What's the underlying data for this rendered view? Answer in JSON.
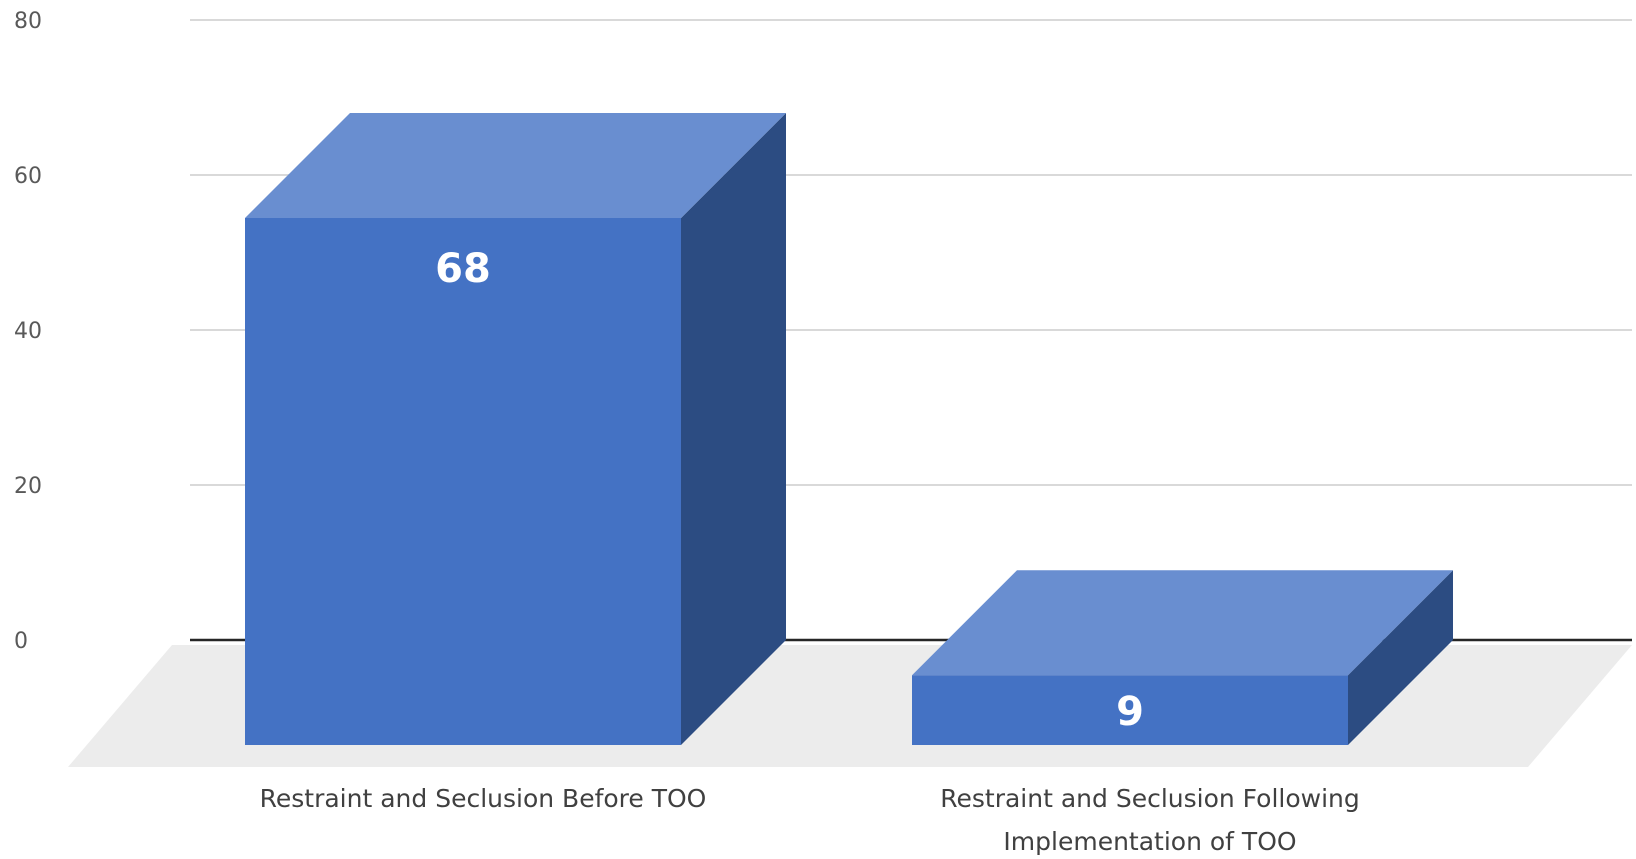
{
  "chart_data": {
    "type": "bar",
    "style": "3d-column",
    "title": "",
    "xlabel": "",
    "ylabel": "",
    "ylim": [
      0,
      80
    ],
    "yticks": [
      0,
      20,
      40,
      60,
      80
    ],
    "grid": true,
    "legend": "none",
    "categories": [
      [
        "Restraint and Seclusion Before TOO"
      ],
      [
        "Restraint and Seclusion Following",
        "Implementation of TOO"
      ]
    ],
    "values": [
      68,
      9
    ],
    "data_labels": [
      "68",
      "9"
    ],
    "colors": {
      "bar_front": "#4472c4",
      "bar_top": "#698ed0",
      "bar_side": "#2c4c82",
      "floor": "#ececec",
      "gridline": "#d9d9d9",
      "axis_line": "#262626",
      "tick_text": "#595959",
      "category_text": "#404040",
      "data_label_text": "#ffffff"
    }
  }
}
